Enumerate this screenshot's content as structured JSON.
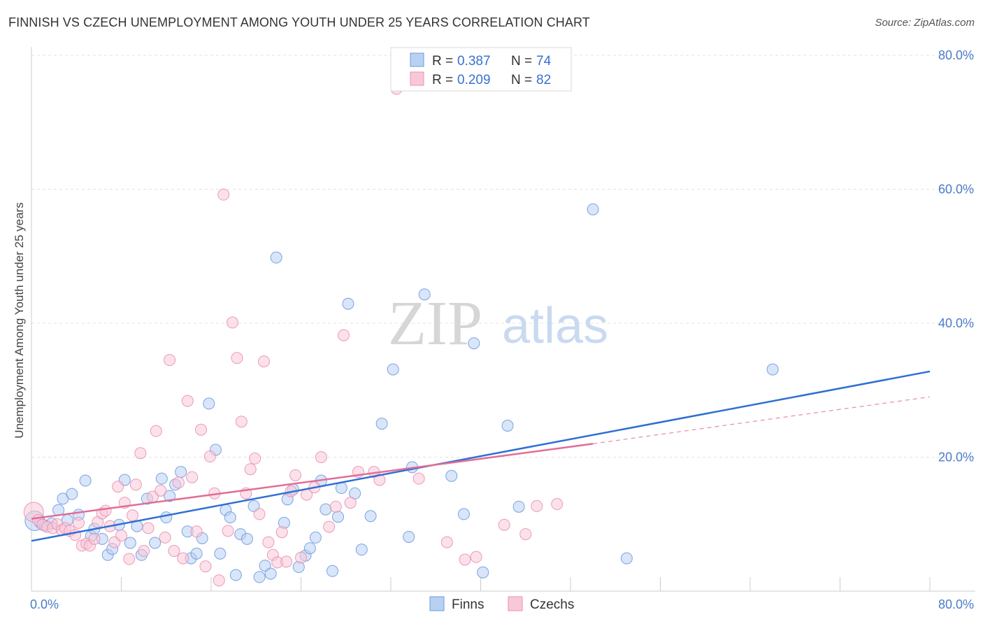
{
  "chart_data": {
    "type": "scatter",
    "title": "FINNISH VS CZECH UNEMPLOYMENT AMONG YOUTH UNDER 25 YEARS CORRELATION CHART",
    "source": "Source: ZipAtlas.com",
    "ylabel": "Unemployment Among Youth under 25 years",
    "xlim": [
      0,
      80
    ],
    "ylim": [
      0,
      80
    ],
    "x_tick_labels": [
      "0.0%",
      "80.0%"
    ],
    "y_ticks": [
      20,
      40,
      60,
      80
    ],
    "y_tick_labels": [
      "20.0%",
      "40.0%",
      "60.0%",
      "80.0%"
    ],
    "watermark": {
      "part1": "ZIP",
      "part2": "atlas"
    },
    "legend": [
      {
        "r_label": "R =",
        "r_value": "0.387",
        "n_label": "N =",
        "n_value": "74"
      },
      {
        "r_label": "R =",
        "r_value": "0.209",
        "n_label": "N =",
        "n_value": "82"
      }
    ],
    "series": [
      {
        "name": "Finns",
        "color": "#6a9be0",
        "fill": "#b9d0f2",
        "trend": {
          "x": [
            0,
            80
          ],
          "y": [
            7.5,
            32.8
          ],
          "dashed_to": null
        },
        "points": [
          [
            0.3,
            10.5
          ],
          [
            0.8,
            10.2
          ],
          [
            1.2,
            9.8
          ],
          [
            1.8,
            10.1
          ],
          [
            2.4,
            12.1
          ],
          [
            2.8,
            13.8
          ],
          [
            3.2,
            10.6
          ],
          [
            3.6,
            14.5
          ],
          [
            4.2,
            11.4
          ],
          [
            4.8,
            16.5
          ],
          [
            5.3,
            8.2
          ],
          [
            5.6,
            9.3
          ],
          [
            6.3,
            7.8
          ],
          [
            6.8,
            5.4
          ],
          [
            7.2,
            6.3
          ],
          [
            7.8,
            9.9
          ],
          [
            8.3,
            16.6
          ],
          [
            8.8,
            7.2
          ],
          [
            9.4,
            9.7
          ],
          [
            9.8,
            5.4
          ],
          [
            10.3,
            13.8
          ],
          [
            11.0,
            7.2
          ],
          [
            11.6,
            16.8
          ],
          [
            12.0,
            11.0
          ],
          [
            12.3,
            14.2
          ],
          [
            12.8,
            15.9
          ],
          [
            13.3,
            17.8
          ],
          [
            13.9,
            8.9
          ],
          [
            14.2,
            4.9
          ],
          [
            14.7,
            5.6
          ],
          [
            15.2,
            7.9
          ],
          [
            15.8,
            28.0
          ],
          [
            16.4,
            21.1
          ],
          [
            16.8,
            5.6
          ],
          [
            17.3,
            12.1
          ],
          [
            17.7,
            11.0
          ],
          [
            18.2,
            2.4
          ],
          [
            18.6,
            8.5
          ],
          [
            19.2,
            7.8
          ],
          [
            19.8,
            12.7
          ],
          [
            20.3,
            2.1
          ],
          [
            20.8,
            3.8
          ],
          [
            21.3,
            2.6
          ],
          [
            21.8,
            49.8
          ],
          [
            22.5,
            10.2
          ],
          [
            22.8,
            13.7
          ],
          [
            23.3,
            15.2
          ],
          [
            23.8,
            3.6
          ],
          [
            24.4,
            5.3
          ],
          [
            24.8,
            6.4
          ],
          [
            25.3,
            8.0
          ],
          [
            25.8,
            16.5
          ],
          [
            26.2,
            12.2
          ],
          [
            26.8,
            3.0
          ],
          [
            27.3,
            11.1
          ],
          [
            27.6,
            15.4
          ],
          [
            28.2,
            42.9
          ],
          [
            28.8,
            14.6
          ],
          [
            29.4,
            6.2
          ],
          [
            30.2,
            11.2
          ],
          [
            31.2,
            25.0
          ],
          [
            32.2,
            33.1
          ],
          [
            33.6,
            8.1
          ],
          [
            33.9,
            18.5
          ],
          [
            35.0,
            44.3
          ],
          [
            37.4,
            17.2
          ],
          [
            38.5,
            11.5
          ],
          [
            39.4,
            37.0
          ],
          [
            40.2,
            2.8
          ],
          [
            42.4,
            24.7
          ],
          [
            43.4,
            12.6
          ],
          [
            50.0,
            57.0
          ],
          [
            53.0,
            4.9
          ],
          [
            66.0,
            33.1
          ]
        ]
      },
      {
        "name": "Czechs",
        "color": "#ec8fae",
        "fill": "#f8c8d8",
        "trend": {
          "x": [
            0,
            50
          ],
          "y": [
            10.8,
            22.0
          ],
          "dashed_to": [
            80,
            29.0
          ]
        },
        "points": [
          [
            0.2,
            11.8
          ],
          [
            0.6,
            10.6
          ],
          [
            1.0,
            9.9
          ],
          [
            1.4,
            9.6
          ],
          [
            1.9,
            9.4
          ],
          [
            2.3,
            10.0
          ],
          [
            2.7,
            9.1
          ],
          [
            3.0,
            9.4
          ],
          [
            3.4,
            9.0
          ],
          [
            3.9,
            8.4
          ],
          [
            4.2,
            10.2
          ],
          [
            4.5,
            6.8
          ],
          [
            4.9,
            7.1
          ],
          [
            5.2,
            6.8
          ],
          [
            5.6,
            7.8
          ],
          [
            5.9,
            10.3
          ],
          [
            6.3,
            11.6
          ],
          [
            6.6,
            12.0
          ],
          [
            7.0,
            9.7
          ],
          [
            7.4,
            7.3
          ],
          [
            7.7,
            15.6
          ],
          [
            8.0,
            8.3
          ],
          [
            8.3,
            13.2
          ],
          [
            8.7,
            4.8
          ],
          [
            9.0,
            11.3
          ],
          [
            9.3,
            15.9
          ],
          [
            9.7,
            20.6
          ],
          [
            10.0,
            6.0
          ],
          [
            10.4,
            9.4
          ],
          [
            10.8,
            14.1
          ],
          [
            11.1,
            23.9
          ],
          [
            11.5,
            15.0
          ],
          [
            11.9,
            8.0
          ],
          [
            12.3,
            34.5
          ],
          [
            12.7,
            6.0
          ],
          [
            13.1,
            16.2
          ],
          [
            13.5,
            4.9
          ],
          [
            13.9,
            28.4
          ],
          [
            14.3,
            17.0
          ],
          [
            14.7,
            8.9
          ],
          [
            15.1,
            24.1
          ],
          [
            15.5,
            3.7
          ],
          [
            15.9,
            20.1
          ],
          [
            16.3,
            14.6
          ],
          [
            16.7,
            1.6
          ],
          [
            17.1,
            59.2
          ],
          [
            17.5,
            9.0
          ],
          [
            17.9,
            40.1
          ],
          [
            18.3,
            34.8
          ],
          [
            18.7,
            25.3
          ],
          [
            19.1,
            14.6
          ],
          [
            19.5,
            18.2
          ],
          [
            19.9,
            19.8
          ],
          [
            20.3,
            11.5
          ],
          [
            20.7,
            34.3
          ],
          [
            21.1,
            7.3
          ],
          [
            21.5,
            5.4
          ],
          [
            21.9,
            4.3
          ],
          [
            22.3,
            8.8
          ],
          [
            22.7,
            4.4
          ],
          [
            23.1,
            14.9
          ],
          [
            23.5,
            17.3
          ],
          [
            24.0,
            5.0
          ],
          [
            24.5,
            14.4
          ],
          [
            25.2,
            15.5
          ],
          [
            25.8,
            20.0
          ],
          [
            26.5,
            9.6
          ],
          [
            27.1,
            12.6
          ],
          [
            27.8,
            38.2
          ],
          [
            28.4,
            13.2
          ],
          [
            29.1,
            17.8
          ],
          [
            30.5,
            17.8
          ],
          [
            31.0,
            16.6
          ],
          [
            32.5,
            75.0
          ],
          [
            34.5,
            16.8
          ],
          [
            37.0,
            7.3
          ],
          [
            38.6,
            4.7
          ],
          [
            39.6,
            5.1
          ],
          [
            42.1,
            9.9
          ],
          [
            44.0,
            8.5
          ],
          [
            45.0,
            12.7
          ],
          [
            46.8,
            13.0
          ]
        ]
      }
    ]
  }
}
